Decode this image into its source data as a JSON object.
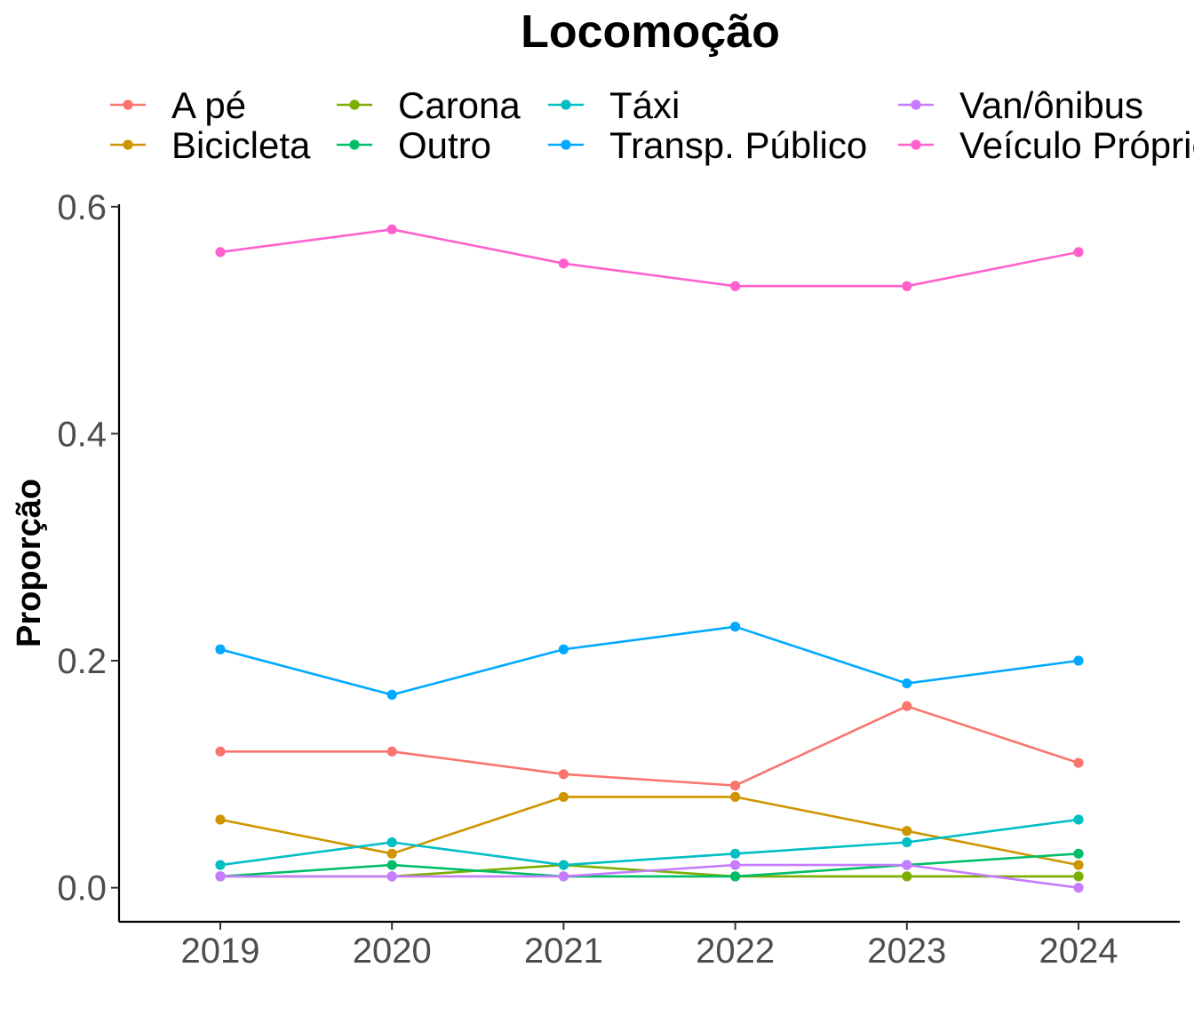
{
  "chart_data": {
    "type": "line",
    "title": "Locomoção",
    "xlabel": "",
    "ylabel": "Proporção",
    "x": [
      "2019",
      "2020",
      "2021",
      "2022",
      "2023",
      "2024"
    ],
    "ylim": [
      -0.03,
      0.61
    ],
    "yticks": [
      0.0,
      0.2,
      0.4,
      0.6
    ],
    "ytick_labels": [
      "0.0",
      "0.2",
      "0.4",
      "0.6"
    ],
    "grid": false,
    "legend_position": "top",
    "series": [
      {
        "name": "A pé",
        "color": "#F8766D",
        "values": [
          0.12,
          0.12,
          0.1,
          0.09,
          0.16,
          0.11
        ]
      },
      {
        "name": "Bicicleta",
        "color": "#CD9600",
        "values": [
          0.06,
          0.03,
          0.08,
          0.08,
          0.05,
          0.02
        ]
      },
      {
        "name": "Carona",
        "color": "#7CAE00",
        "values": [
          0.01,
          0.01,
          0.02,
          0.01,
          0.01,
          0.01
        ]
      },
      {
        "name": "Outro",
        "color": "#00BE67",
        "values": [
          0.01,
          0.02,
          0.01,
          0.01,
          0.02,
          0.03
        ]
      },
      {
        "name": "Táxi",
        "color": "#00BFC4",
        "values": [
          0.02,
          0.04,
          0.02,
          0.03,
          0.04,
          0.06
        ]
      },
      {
        "name": "Transp. Público",
        "color": "#00A9FF",
        "values": [
          0.21,
          0.17,
          0.21,
          0.23,
          0.18,
          0.2
        ]
      },
      {
        "name": "Van/ônibus",
        "color": "#C77CFF",
        "values": [
          0.01,
          0.01,
          0.01,
          0.02,
          0.02,
          0.0
        ]
      },
      {
        "name": "Veículo Próprio",
        "color": "#FF61CC",
        "values": [
          0.56,
          0.58,
          0.55,
          0.53,
          0.53,
          0.56
        ]
      }
    ]
  }
}
